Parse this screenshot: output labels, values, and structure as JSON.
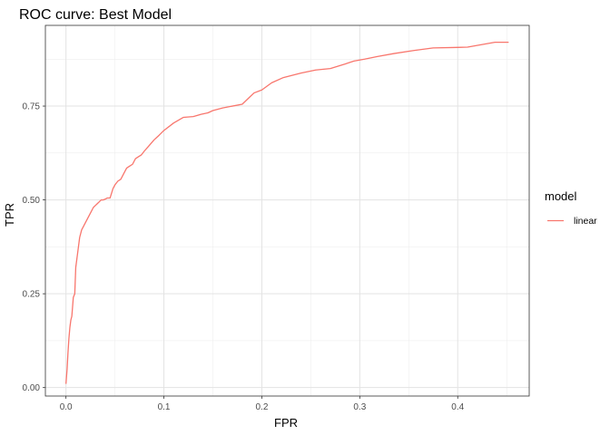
{
  "chart_data": {
    "type": "line",
    "title": "ROC curve: Best Model",
    "xlabel": "FPR",
    "ylabel": "TPR",
    "xlim": [
      -0.021,
      0.473
    ],
    "ylim": [
      -0.0225,
      0.965
    ],
    "x_ticks": [
      0.0,
      0.1,
      0.2,
      0.3,
      0.4
    ],
    "x_tick_labels": [
      "0.0",
      "0.1",
      "0.2",
      "0.3",
      "0.4"
    ],
    "y_ticks": [
      0.0,
      0.25,
      0.5,
      0.75
    ],
    "y_tick_labels": [
      "0.00",
      "0.25",
      "0.50",
      "0.75"
    ],
    "grid": true,
    "legend": {
      "title": "model",
      "position": "right"
    },
    "series": [
      {
        "name": "linear",
        "color": "#F8766D",
        "x": [
          0.0,
          0.0012,
          0.002,
          0.003,
          0.004,
          0.005,
          0.006,
          0.0075,
          0.009,
          0.01,
          0.011,
          0.012,
          0.013,
          0.014,
          0.016,
          0.018,
          0.02,
          0.022,
          0.024,
          0.026,
          0.028,
          0.03,
          0.032,
          0.034,
          0.036,
          0.038,
          0.04,
          0.042,
          0.045,
          0.048,
          0.05,
          0.053,
          0.056,
          0.059,
          0.062,
          0.065,
          0.068,
          0.071,
          0.074,
          0.077,
          0.08,
          0.085,
          0.09,
          0.095,
          0.1,
          0.11,
          0.12,
          0.13,
          0.138,
          0.145,
          0.15,
          0.16,
          0.17,
          0.18,
          0.186,
          0.192,
          0.2,
          0.21,
          0.222,
          0.24,
          0.255,
          0.27,
          0.285,
          0.294,
          0.305,
          0.318,
          0.335,
          0.355,
          0.375,
          0.395,
          0.41,
          0.425,
          0.438,
          0.452
        ],
        "y": [
          0.01,
          0.05,
          0.09,
          0.13,
          0.16,
          0.18,
          0.19,
          0.24,
          0.25,
          0.32,
          0.34,
          0.36,
          0.38,
          0.4,
          0.42,
          0.43,
          0.44,
          0.45,
          0.46,
          0.47,
          0.48,
          0.485,
          0.49,
          0.495,
          0.5,
          0.5,
          0.502,
          0.505,
          0.505,
          0.53,
          0.54,
          0.55,
          0.555,
          0.57,
          0.585,
          0.59,
          0.595,
          0.61,
          0.615,
          0.62,
          0.63,
          0.645,
          0.66,
          0.672,
          0.685,
          0.705,
          0.72,
          0.722,
          0.728,
          0.732,
          0.738,
          0.745,
          0.75,
          0.755,
          0.77,
          0.785,
          0.793,
          0.812,
          0.826,
          0.838,
          0.846,
          0.85,
          0.862,
          0.87,
          0.875,
          0.882,
          0.89,
          0.898,
          0.905,
          0.906,
          0.907,
          0.914,
          0.92,
          0.92
        ]
      }
    ]
  }
}
